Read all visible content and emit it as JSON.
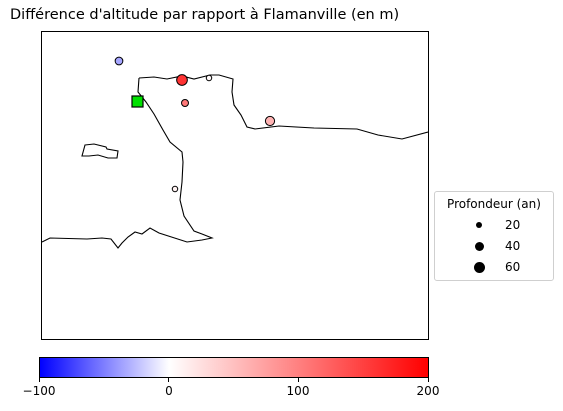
{
  "title": "Différence d'altitude par rapport à Flamanville (en m)",
  "map": {
    "reference_site": {
      "name": "Flamanville",
      "marker": "green-square-icon",
      "color": "#00e000"
    },
    "observations": [
      {
        "id": "obs-1",
        "altitude_diff_m": -35,
        "depth_years": 30
      },
      {
        "id": "obs-2",
        "altitude_diff_m": 160,
        "depth_years": 50
      },
      {
        "id": "obs-3",
        "altitude_diff_m": 5,
        "depth_years": 15
      },
      {
        "id": "obs-4",
        "altitude_diff_m": 105,
        "depth_years": 25
      },
      {
        "id": "obs-5",
        "altitude_diff_m": 60,
        "depth_years": 40
      },
      {
        "id": "obs-6",
        "altitude_diff_m": 10,
        "depth_years": 15
      }
    ]
  },
  "legend": {
    "title": "Profondeur (an)",
    "entries": [
      {
        "label": "20",
        "depth_years": 20
      },
      {
        "label": "40",
        "depth_years": 40
      },
      {
        "label": "60",
        "depth_years": 60
      }
    ]
  },
  "colorbar": {
    "colormap": "bwr",
    "min": -100,
    "max": 200,
    "ticks": [
      "−100",
      "0",
      "100",
      "200"
    ],
    "colors": {
      "low": "#0000ff",
      "mid": "#ffffff",
      "high": "#ff0000"
    }
  }
}
